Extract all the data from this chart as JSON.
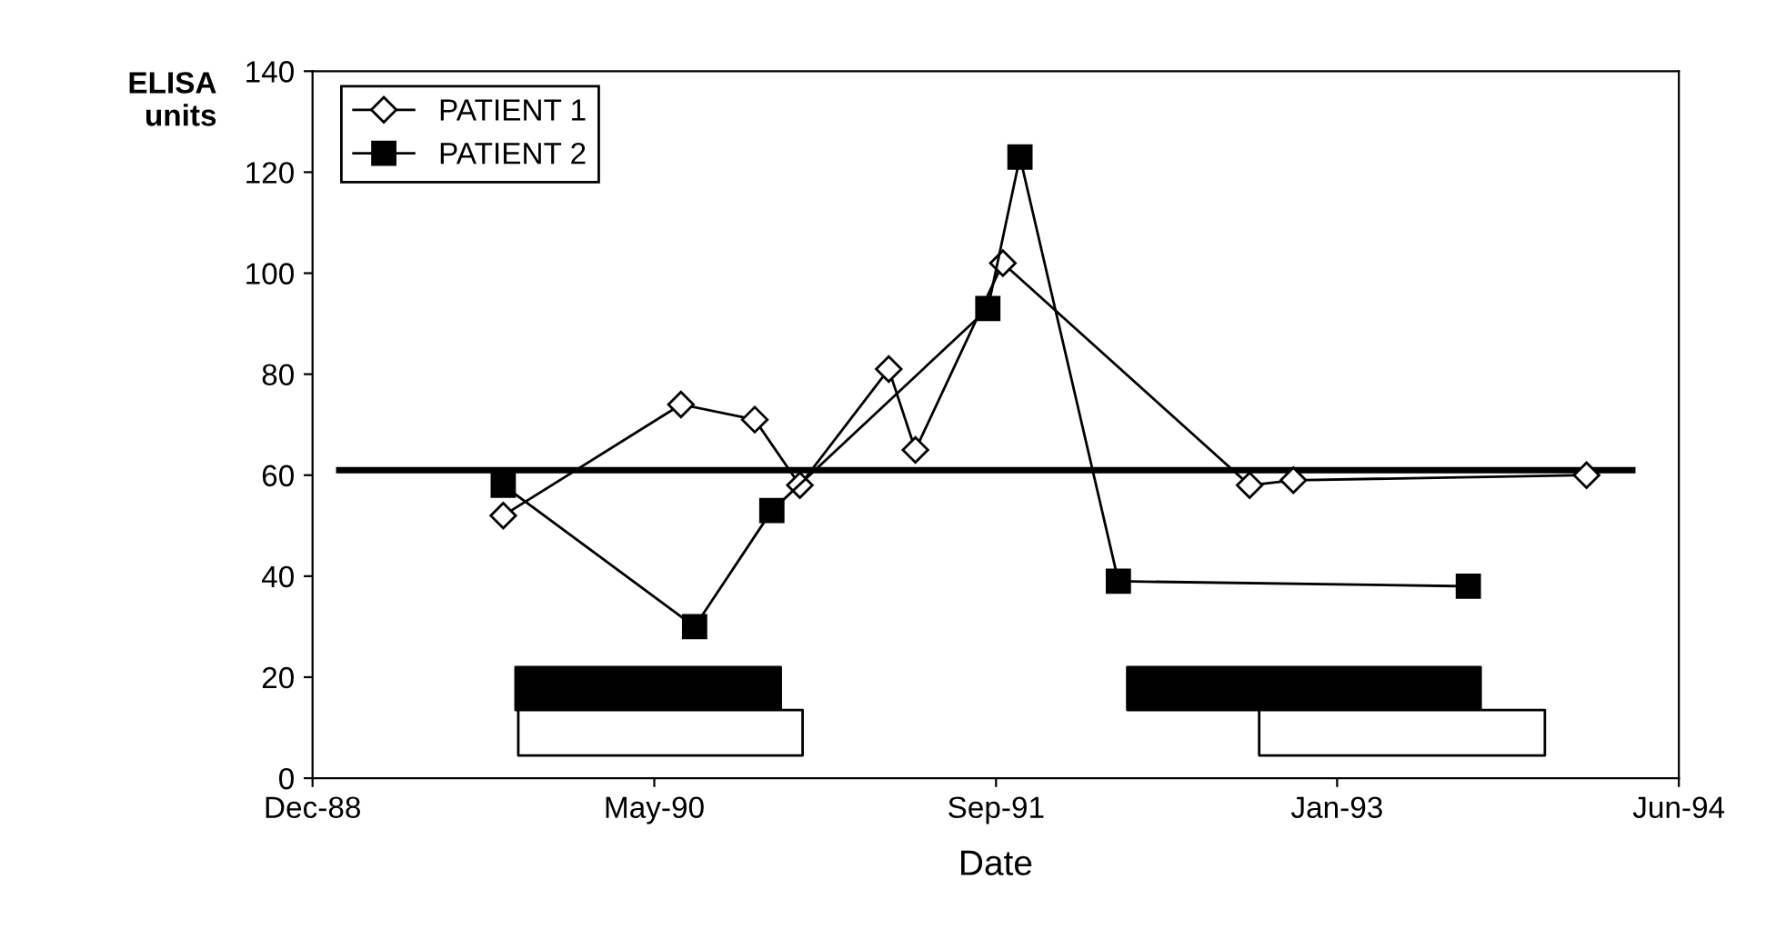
{
  "chart_data": {
    "type": "line",
    "xlabel": "Date",
    "ylabel": "ELISA\nunits",
    "xlim": [
      "1988-12-24",
      "1994-06-15"
    ],
    "xticks": [
      {
        "value": "1988-12-24",
        "label": "Dec-88"
      },
      {
        "value": "1990-05-08",
        "label": "May-90"
      },
      {
        "value": "1991-09-20",
        "label": "Sep-91"
      },
      {
        "value": "1993-01-31",
        "label": "Jan-93"
      },
      {
        "value": "1994-06-15",
        "label": "Jun-94"
      }
    ],
    "ylim": [
      0,
      140
    ],
    "yticks": [
      0,
      20,
      40,
      60,
      80,
      100,
      120,
      140
    ],
    "legend": "top left",
    "grid": false,
    "series": [
      {
        "name": "PATIENT 1",
        "color": "#000000",
        "marker": "diamond",
        "x": [
          "1989-09-29",
          "1990-06-16",
          "1990-10-02",
          "1990-12-07",
          "1991-04-16",
          "1991-05-25",
          "1991-09-30",
          "1992-09-25",
          "1992-11-28",
          "1994-01-31"
        ],
        "values": [
          52,
          74,
          71,
          58,
          81,
          65,
          102,
          58,
          59,
          60
        ]
      },
      {
        "name": "PATIENT 2",
        "color": "#000000",
        "marker": "square",
        "x": [
          "1989-09-29",
          "1990-07-06",
          "1990-10-27",
          "1991-09-08",
          "1991-10-25",
          "1992-03-17",
          "1993-08-11"
        ],
        "values": [
          58,
          30,
          53,
          93,
          123,
          39,
          38
        ]
      },
      {
        "type": "line",
        "color": "#000000",
        "marker": "none",
        "x": [
          "1989-02-01",
          "1994-04-08"
        ],
        "values": [
          61,
          61
        ]
      },
      {
        "type": "area",
        "color": "#000000",
        "x": [
          "1989-10-17",
          "1990-11-09"
        ],
        "lower": [
          13.5,
          13.5
        ],
        "upper": [
          22,
          22
        ],
        "values": [
          null,
          null
        ]
      },
      {
        "type": "area",
        "color": "#ffffff",
        "x": [
          "1989-10-21",
          "1990-12-11"
        ],
        "lower": [
          4.5,
          4.5
        ],
        "upper": [
          13.5,
          13.5
        ],
        "values": [
          null,
          null
        ]
      },
      {
        "type": "area",
        "color": "#000000",
        "x": [
          "1992-03-30",
          "1993-08-29"
        ],
        "lower": [
          13.5,
          13.5
        ],
        "upper": [
          22,
          22
        ],
        "values": [
          null,
          null
        ]
      },
      {
        "type": "area",
        "color": "#ffffff",
        "x": [
          "1992-10-09",
          "1993-12-01"
        ],
        "lower": [
          4.5,
          4.5
        ],
        "upper": [
          13.5,
          13.5
        ],
        "values": [
          null,
          null
        ]
      }
    ]
  }
}
